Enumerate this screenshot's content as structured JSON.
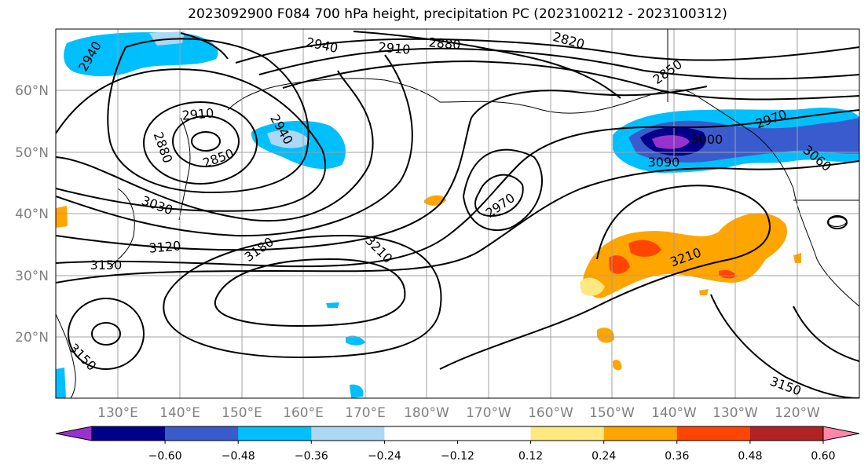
{
  "title": "2023092900 F084 700 hPa height, precipitation PC (2023100212 - 2023100312)",
  "map": {
    "lon_ticks": [
      "130°E",
      "140°E",
      "150°E",
      "160°E",
      "170°E",
      "180°W",
      "170°W",
      "160°W",
      "150°W",
      "140°W",
      "130°W",
      "120°W"
    ],
    "lat_ticks": [
      "60°N",
      "50°N",
      "40°N",
      "30°N",
      "20°N"
    ]
  },
  "contour_labels": [
    {
      "text": "2940",
      "rot": -60
    },
    {
      "text": "2940",
      "rot": 12
    },
    {
      "text": "2910",
      "rot": 5
    },
    {
      "text": "2880",
      "rot": 5
    },
    {
      "text": "2820",
      "rot": 15
    },
    {
      "text": "2850",
      "rot": -35
    },
    {
      "text": "2910",
      "rot": -5
    },
    {
      "text": "2880",
      "rot": 70
    },
    {
      "text": "2850",
      "rot": -20
    },
    {
      "text": "2940",
      "rot": 60
    },
    {
      "text": "2970",
      "rot": -20
    },
    {
      "text": "3000",
      "rot": 0
    },
    {
      "text": "3090",
      "rot": 0
    },
    {
      "text": "3060",
      "rot": 40
    },
    {
      "text": "2970",
      "rot": -35
    },
    {
      "text": "3030",
      "rot": 20
    },
    {
      "text": "3120",
      "rot": -5
    },
    {
      "text": "3150",
      "rot": 0
    },
    {
      "text": "3180",
      "rot": -35
    },
    {
      "text": "3210",
      "rot": 45
    },
    {
      "text": "3210",
      "rot": -20
    },
    {
      "text": "3150",
      "rot": 45
    },
    {
      "text": "3150",
      "rot": 20
    }
  ],
  "colorbar": {
    "colors": [
      "#9932cc",
      "#00008b",
      "#3a5bcd",
      "#00bfff",
      "#add8f5",
      "#ffffff",
      "#ffffff",
      "#ffe880",
      "#ffa500",
      "#ff4500",
      "#b22222",
      "#ff88aa"
    ],
    "labels": [
      "−0.60",
      "−0.48",
      "−0.36",
      "−0.24",
      "−0.12",
      "0.12",
      "0.24",
      "0.36",
      "0.48",
      "0.60"
    ]
  }
}
